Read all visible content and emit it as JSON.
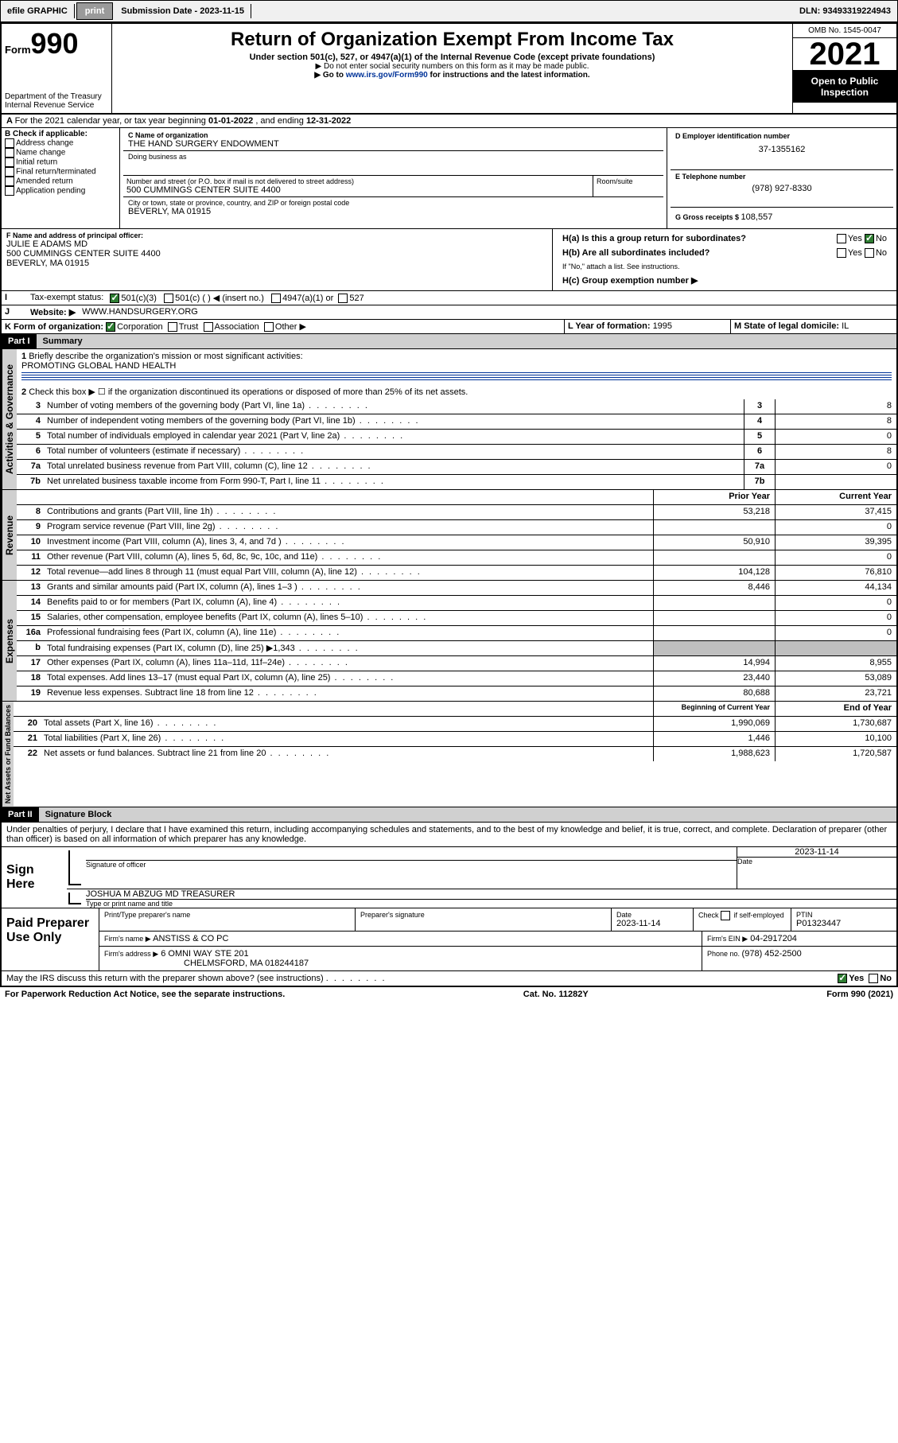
{
  "topbar": {
    "efile": "efile GRAPHIC",
    "print": "print",
    "subdate_label": "Submission Date - ",
    "subdate": "2023-11-15",
    "dln_label": "DLN: ",
    "dln": "93493319224943"
  },
  "header": {
    "form_prefix": "Form",
    "form_num": "990",
    "dept": "Department of the Treasury",
    "irs": "Internal Revenue Service",
    "title": "Return of Organization Exempt From Income Tax",
    "sub1": "Under section 501(c), 527, or 4947(a)(1) of the Internal Revenue Code (except private foundations)",
    "sub2": "▶ Do not enter social security numbers on this form as it may be made public.",
    "sub3a": "▶ Go to ",
    "sub3_link": "www.irs.gov/Form990",
    "sub3b": " for instructions and the latest information.",
    "omb": "OMB No. 1545-0047",
    "year": "2021",
    "open": "Open to Public Inspection"
  },
  "line_a": {
    "text_a": "For the 2021 calendar year, or tax year beginning ",
    "begin": "01-01-2022",
    "text_b": " , and ending ",
    "end": "12-31-2022"
  },
  "section_b": {
    "label": "B Check if applicable:",
    "opts": [
      "Address change",
      "Name change",
      "Initial return",
      "Final return/terminated",
      "Amended return",
      "Application pending"
    ]
  },
  "section_c": {
    "name_label": "C Name of organization",
    "name": "THE HAND SURGERY ENDOWMENT",
    "dba_label": "Doing business as",
    "addr_label": "Number and street (or P.O. box if mail is not delivered to street address)",
    "room_label": "Room/suite",
    "addr": "500 CUMMINGS CENTER SUITE 4400",
    "city_label": "City or town, state or province, country, and ZIP or foreign postal code",
    "city": "BEVERLY, MA  01915"
  },
  "section_d": {
    "label": "D Employer identification number",
    "ein": "37-1355162"
  },
  "section_e": {
    "label": "E Telephone number",
    "phone": "(978) 927-8330"
  },
  "section_g": {
    "label": "G Gross receipts $ ",
    "val": "108,557"
  },
  "section_f": {
    "label": "F Name and address of principal officer:",
    "name": "JULIE E ADAMS MD",
    "addr1": "500 CUMMINGS CENTER SUITE 4400",
    "addr2": "BEVERLY, MA  01915"
  },
  "section_h": {
    "ha": "H(a)  Is this a group return for subordinates?",
    "hb": "H(b)  Are all subordinates included?",
    "hb_note": "If \"No,\" attach a list. See instructions.",
    "hc": "H(c)  Group exemption number ▶",
    "yes": "Yes",
    "no": "No"
  },
  "line_i": {
    "label": "Tax-exempt status:",
    "o1": "501(c)(3)",
    "o2": "501(c) (  ) ◀ (insert no.)",
    "o3": "4947(a)(1) or",
    "o4": "527"
  },
  "line_j": {
    "label": "Website: ▶",
    "val": "WWW.HANDSURGERY.ORG"
  },
  "line_k": {
    "label": "K Form of organization:",
    "o1": "Corporation",
    "o2": "Trust",
    "o3": "Association",
    "o4": "Other ▶"
  },
  "line_l": {
    "label": "L Year of formation: ",
    "val": "1995"
  },
  "line_m": {
    "label": "M State of legal domicile: ",
    "val": "IL"
  },
  "part1": {
    "hdr": "Part I",
    "title": "Summary",
    "q1": "Briefly describe the organization's mission or most significant activities:",
    "mission": "PROMOTING GLOBAL HAND HEALTH",
    "q2": "Check this box ▶ ☐  if the organization discontinued its operations or disposed of more than 25% of its net assets.",
    "lines": {
      "3": {
        "t": "Number of voting members of the governing body (Part VI, line 1a)",
        "b": "3",
        "v": "8"
      },
      "4": {
        "t": "Number of independent voting members of the governing body (Part VI, line 1b)",
        "b": "4",
        "v": "8"
      },
      "5": {
        "t": "Total number of individuals employed in calendar year 2021 (Part V, line 2a)",
        "b": "5",
        "v": "0"
      },
      "6": {
        "t": "Total number of volunteers (estimate if necessary)",
        "b": "6",
        "v": "8"
      },
      "7a": {
        "t": "Total unrelated business revenue from Part VIII, column (C), line 12",
        "b": "7a",
        "v": "0"
      },
      "7b": {
        "t": "Net unrelated business taxable income from Form 990-T, Part I, line 11",
        "b": "7b",
        "v": ""
      }
    },
    "col_prior": "Prior Year",
    "col_curr": "Current Year",
    "rev": [
      {
        "n": "8",
        "t": "Contributions and grants (Part VIII, line 1h)",
        "p": "53,218",
        "c": "37,415"
      },
      {
        "n": "9",
        "t": "Program service revenue (Part VIII, line 2g)",
        "p": "",
        "c": "0"
      },
      {
        "n": "10",
        "t": "Investment income (Part VIII, column (A), lines 3, 4, and 7d )",
        "p": "50,910",
        "c": "39,395"
      },
      {
        "n": "11",
        "t": "Other revenue (Part VIII, column (A), lines 5, 6d, 8c, 9c, 10c, and 11e)",
        "p": "",
        "c": "0"
      },
      {
        "n": "12",
        "t": "Total revenue—add lines 8 through 11 (must equal Part VIII, column (A), line 12)",
        "p": "104,128",
        "c": "76,810"
      }
    ],
    "exp": [
      {
        "n": "13",
        "t": "Grants and similar amounts paid (Part IX, column (A), lines 1–3 )",
        "p": "8,446",
        "c": "44,134"
      },
      {
        "n": "14",
        "t": "Benefits paid to or for members (Part IX, column (A), line 4)",
        "p": "",
        "c": "0"
      },
      {
        "n": "15",
        "t": "Salaries, other compensation, employee benefits (Part IX, column (A), lines 5–10)",
        "p": "",
        "c": "0"
      },
      {
        "n": "16a",
        "t": "Professional fundraising fees (Part IX, column (A), line 11e)",
        "p": "",
        "c": "0"
      },
      {
        "n": "b",
        "t": "Total fundraising expenses (Part IX, column (D), line 25) ▶1,343",
        "p": "GREY",
        "c": "GREY"
      },
      {
        "n": "17",
        "t": "Other expenses (Part IX, column (A), lines 11a–11d, 11f–24e)",
        "p": "14,994",
        "c": "8,955"
      },
      {
        "n": "18",
        "t": "Total expenses. Add lines 13–17 (must equal Part IX, column (A), line 25)",
        "p": "23,440",
        "c": "53,089"
      },
      {
        "n": "19",
        "t": "Revenue less expenses. Subtract line 18 from line 12",
        "p": "80,688",
        "c": "23,721"
      }
    ],
    "col_begin": "Beginning of Current Year",
    "col_end": "End of Year",
    "net": [
      {
        "n": "20",
        "t": "Total assets (Part X, line 16)",
        "p": "1,990,069",
        "c": "1,730,687"
      },
      {
        "n": "21",
        "t": "Total liabilities (Part X, line 26)",
        "p": "1,446",
        "c": "10,100"
      },
      {
        "n": "22",
        "t": "Net assets or fund balances. Subtract line 21 from line 20",
        "p": "1,988,623",
        "c": "1,720,587"
      }
    ]
  },
  "vlabels": {
    "gov": "Activities & Governance",
    "rev": "Revenue",
    "exp": "Expenses",
    "net": "Net Assets or Fund Balances"
  },
  "part2": {
    "hdr": "Part II",
    "title": "Signature Block",
    "decl": "Under penalties of perjury, I declare that I have examined this return, including accompanying schedules and statements, and to the best of my knowledge and belief, it is true, correct, and complete. Declaration of preparer (other than officer) is based on all information of which preparer has any knowledge."
  },
  "sign": {
    "here": "Sign Here",
    "sig_label": "Signature of officer",
    "date_label": "Date",
    "date": "2023-11-14",
    "name": "JOSHUA M ABZUG MD TREASURER",
    "name_label": "Type or print name and title"
  },
  "paid": {
    "label": "Paid Preparer Use Only",
    "h1": "Print/Type preparer's name",
    "h2": "Preparer's signature",
    "h3": "Date",
    "h3v": "2023-11-14",
    "h4a": "Check",
    "h4b": "if self-employed",
    "h5": "PTIN",
    "h5v": "P01323447",
    "firm_label": "Firm's name    ▶",
    "firm": "ANSTISS & CO PC",
    "ein_label": "Firm's EIN ▶",
    "ein": "04-2917204",
    "addr_label": "Firm's address ▶",
    "addr1": "6 OMNI WAY STE 201",
    "addr2": "CHELMSFORD, MA  018244187",
    "phone_label": "Phone no. ",
    "phone": "(978) 452-2500"
  },
  "bottom": {
    "q": "May the IRS discuss this return with the preparer shown above? (see instructions)",
    "yes": "Yes",
    "no": "No"
  },
  "footer": {
    "left": "For Paperwork Reduction Act Notice, see the separate instructions.",
    "mid": "Cat. No. 11282Y",
    "right_a": "Form ",
    "right_b": "990",
    "right_c": " (2021)"
  }
}
